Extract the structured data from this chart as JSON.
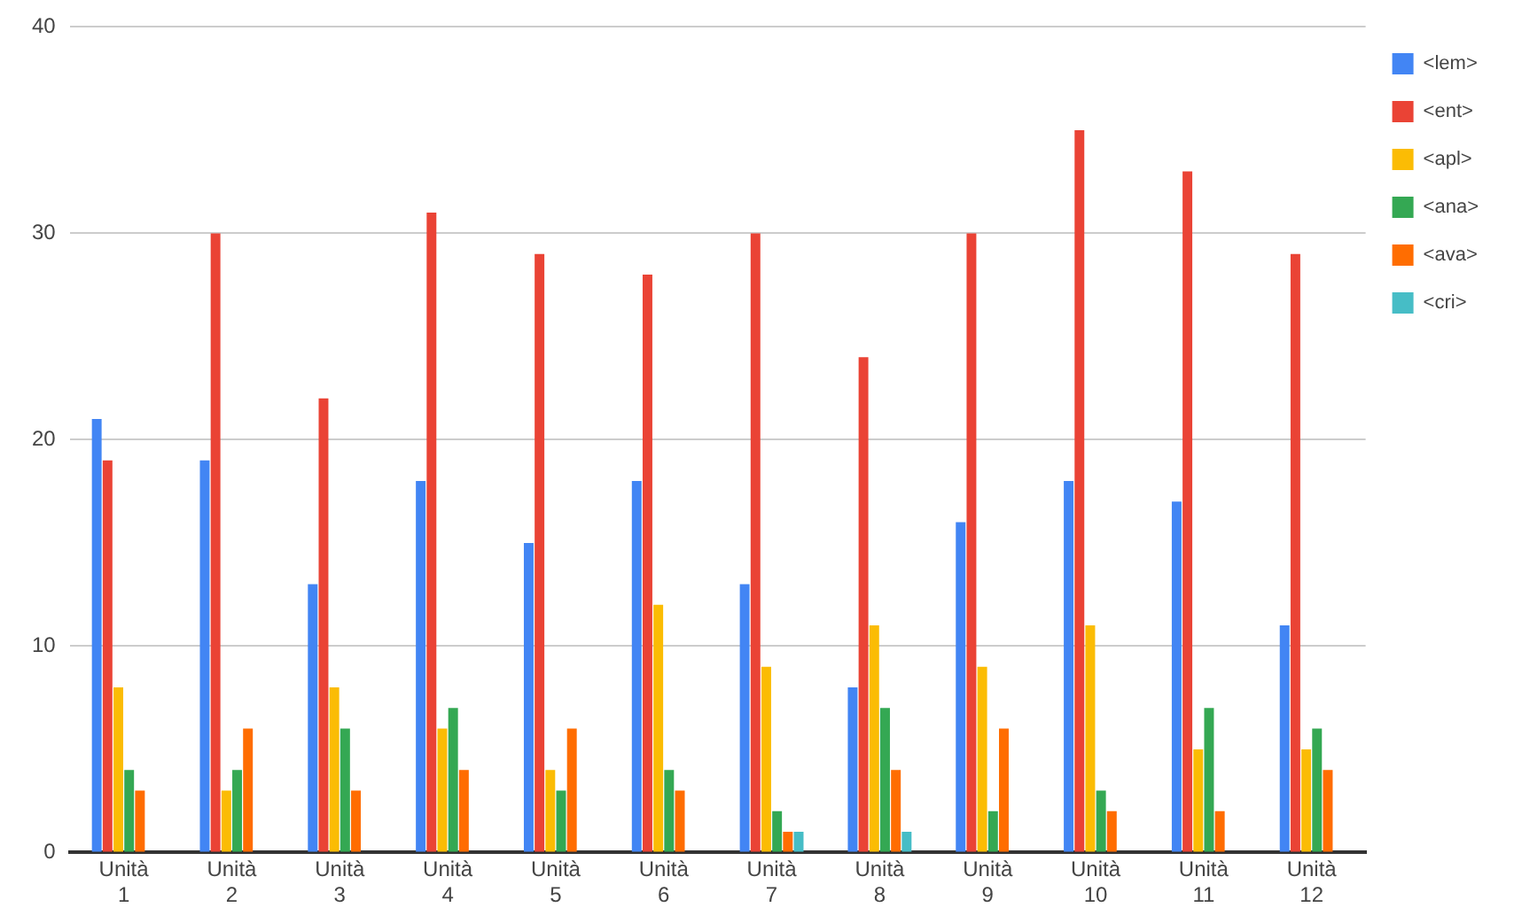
{
  "chart_data": {
    "type": "bar",
    "categories": [
      "Unità 1",
      "Unità 2",
      "Unità 3",
      "Unità 4",
      "Unità 5",
      "Unità 6",
      "Unità 7",
      "Unità 8",
      "Unità 9",
      "Unità 10",
      "Unità 11",
      "Unità 12"
    ],
    "series": [
      {
        "name": "<lem>",
        "color": "#4285f4",
        "values": [
          21,
          19,
          13,
          18,
          15,
          18,
          13,
          8,
          16,
          18,
          17,
          11
        ]
      },
      {
        "name": "<ent>",
        "color": "#ea4335",
        "values": [
          19,
          30,
          22,
          31,
          29,
          28,
          30,
          24,
          30,
          35,
          33,
          29
        ]
      },
      {
        "name": "<apl>",
        "color": "#fbbc04",
        "values": [
          8,
          3,
          8,
          6,
          4,
          12,
          9,
          11,
          9,
          11,
          5,
          5
        ]
      },
      {
        "name": "<ana>",
        "color": "#34a853",
        "values": [
          4,
          4,
          6,
          7,
          3,
          4,
          2,
          7,
          2,
          3,
          7,
          6
        ]
      },
      {
        "name": "<ava>",
        "color": "#ff6d01",
        "values": [
          3,
          6,
          3,
          4,
          6,
          3,
          1,
          4,
          6,
          2,
          2,
          4
        ]
      },
      {
        "name": "<cri>",
        "color": "#46bdc6",
        "values": [
          0,
          0,
          0,
          0,
          0,
          0,
          1,
          1,
          0,
          0,
          0,
          0
        ]
      }
    ],
    "ylim": [
      0,
      40
    ],
    "yticks": [
      0,
      10,
      20,
      30,
      40
    ],
    "grid": "y",
    "legend": "top right"
  }
}
